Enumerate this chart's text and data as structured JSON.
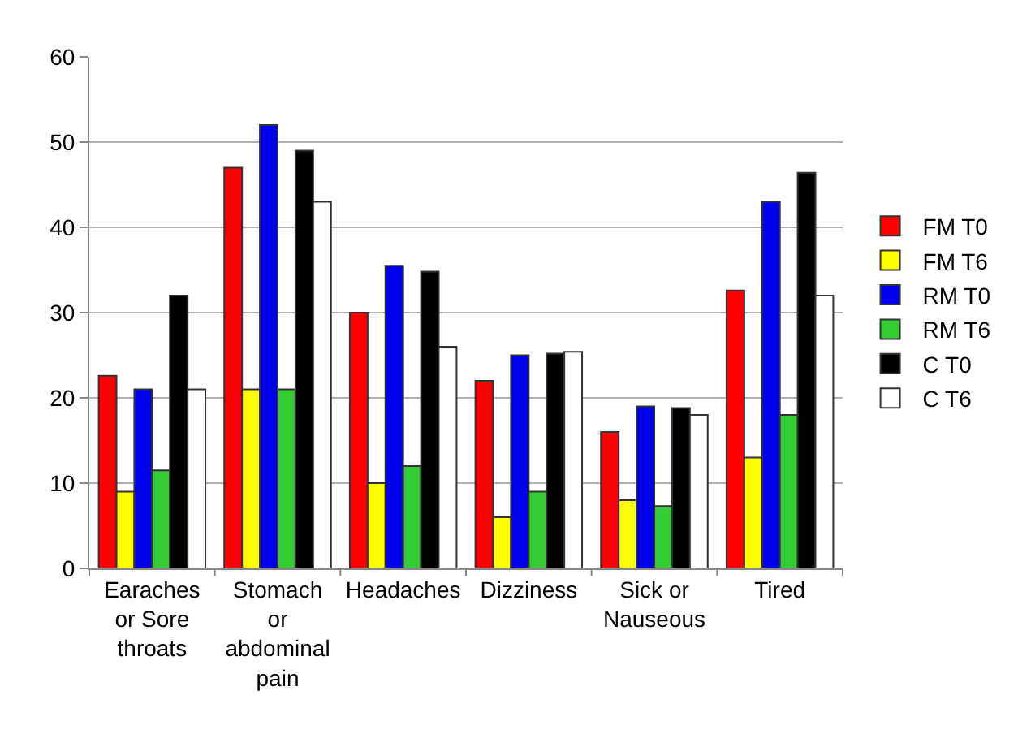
{
  "chart_data": {
    "type": "bar",
    "categories": [
      "Earaches or Sore throats",
      "Stomach or abdominal pain",
      "Headaches",
      "Dizziness",
      "Sick or Nauseous",
      "Tired"
    ],
    "series": [
      {
        "name": "FM T0",
        "color": "#ff0000",
        "values": [
          22.6,
          47,
          30,
          22,
          16,
          32.6
        ]
      },
      {
        "name": "FM T6",
        "color": "#ffff00",
        "values": [
          9,
          21,
          10,
          6,
          8,
          13
        ]
      },
      {
        "name": "RM T0",
        "color": "#0000ee",
        "values": [
          21,
          52,
          35.5,
          25,
          19,
          43
        ]
      },
      {
        "name": "RM T6",
        "color": "#33cc33",
        "values": [
          11.5,
          21,
          12,
          9,
          7.3,
          18
        ]
      },
      {
        "name": "C T0",
        "color": "#000000",
        "values": [
          32,
          49,
          34.8,
          25.2,
          18.8,
          46.4
        ]
      },
      {
        "name": "C T6",
        "color": "#ffffff",
        "values": [
          21,
          43,
          26,
          25.4,
          18,
          32
        ]
      }
    ],
    "ylim": [
      0,
      60
    ],
    "yticks": [
      0,
      10,
      20,
      30,
      40,
      50,
      60
    ],
    "grid": "y",
    "legend": "right"
  }
}
